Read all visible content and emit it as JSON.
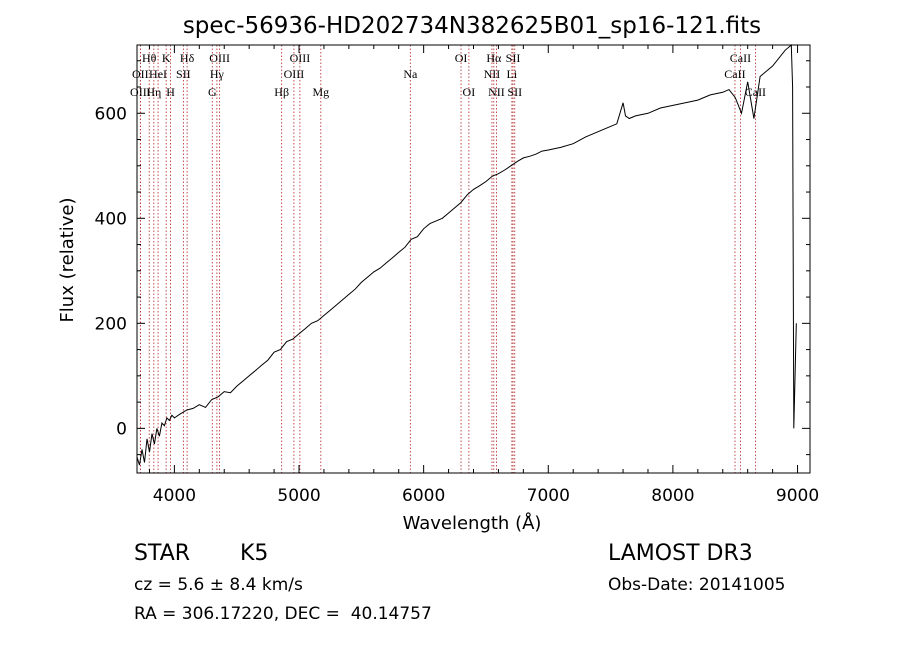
{
  "chart_data": {
    "type": "line",
    "title": "spec-56936-HD202734N382625B01_sp16-121.fits",
    "xlabel": "Wavelength (Å)",
    "ylabel": "Flux (relative)",
    "xlim": [
      3700,
      9100
    ],
    "ylim": [
      -85,
      730
    ],
    "xticks": [
      4000,
      5000,
      6000,
      7000,
      8000,
      9000
    ],
    "yticks": [
      0,
      200,
      400,
      600
    ],
    "series": [
      {
        "name": "spectrum",
        "points": [
          [
            3700,
            -55
          ],
          [
            3720,
            -70
          ],
          [
            3740,
            -40
          ],
          [
            3760,
            -65
          ],
          [
            3780,
            -20
          ],
          [
            3800,
            -45
          ],
          [
            3820,
            -10
          ],
          [
            3840,
            -30
          ],
          [
            3860,
            0
          ],
          [
            3880,
            -15
          ],
          [
            3900,
            10
          ],
          [
            3920,
            5
          ],
          [
            3940,
            20
          ],
          [
            3960,
            15
          ],
          [
            3980,
            25
          ],
          [
            4000,
            20
          ],
          [
            4050,
            28
          ],
          [
            4100,
            35
          ],
          [
            4150,
            38
          ],
          [
            4200,
            45
          ],
          [
            4250,
            40
          ],
          [
            4300,
            55
          ],
          [
            4350,
            60
          ],
          [
            4400,
            70
          ],
          [
            4450,
            68
          ],
          [
            4500,
            80
          ],
          [
            4550,
            90
          ],
          [
            4600,
            100
          ],
          [
            4650,
            110
          ],
          [
            4700,
            120
          ],
          [
            4750,
            130
          ],
          [
            4800,
            145
          ],
          [
            4850,
            150
          ],
          [
            4900,
            165
          ],
          [
            4950,
            170
          ],
          [
            5000,
            180
          ],
          [
            5050,
            190
          ],
          [
            5100,
            200
          ],
          [
            5150,
            205
          ],
          [
            5200,
            215
          ],
          [
            5250,
            225
          ],
          [
            5300,
            235
          ],
          [
            5350,
            245
          ],
          [
            5400,
            255
          ],
          [
            5450,
            265
          ],
          [
            5500,
            278
          ],
          [
            5550,
            288
          ],
          [
            5600,
            298
          ],
          [
            5650,
            305
          ],
          [
            5700,
            315
          ],
          [
            5750,
            325
          ],
          [
            5800,
            335
          ],
          [
            5850,
            345
          ],
          [
            5900,
            360
          ],
          [
            5950,
            365
          ],
          [
            6000,
            380
          ],
          [
            6050,
            390
          ],
          [
            6100,
            395
          ],
          [
            6150,
            400
          ],
          [
            6200,
            410
          ],
          [
            6250,
            420
          ],
          [
            6300,
            430
          ],
          [
            6350,
            445
          ],
          [
            6400,
            455
          ],
          [
            6450,
            462
          ],
          [
            6500,
            470
          ],
          [
            6550,
            480
          ],
          [
            6600,
            485
          ],
          [
            6650,
            492
          ],
          [
            6700,
            500
          ],
          [
            6750,
            508
          ],
          [
            6800,
            515
          ],
          [
            6850,
            518
          ],
          [
            6900,
            522
          ],
          [
            6950,
            528
          ],
          [
            7000,
            530
          ],
          [
            7100,
            535
          ],
          [
            7200,
            542
          ],
          [
            7300,
            555
          ],
          [
            7400,
            565
          ],
          [
            7500,
            575
          ],
          [
            7550,
            580
          ],
          [
            7600,
            620
          ],
          [
            7620,
            595
          ],
          [
            7650,
            590
          ],
          [
            7700,
            595
          ],
          [
            7800,
            600
          ],
          [
            7900,
            610
          ],
          [
            8000,
            615
          ],
          [
            8100,
            620
          ],
          [
            8200,
            625
          ],
          [
            8300,
            635
          ],
          [
            8400,
            640
          ],
          [
            8450,
            645
          ],
          [
            8500,
            630
          ],
          [
            8550,
            600
          ],
          [
            8600,
            660
          ],
          [
            8650,
            590
          ],
          [
            8700,
            670
          ],
          [
            8800,
            690
          ],
          [
            8900,
            720
          ],
          [
            8950,
            730
          ],
          [
            8960,
            650
          ],
          [
            8970,
            0
          ],
          [
            8990,
            200
          ]
        ]
      }
    ],
    "spectral_lines": [
      {
        "label": "Hθ",
        "wavelength": 3798,
        "row": 1
      },
      {
        "label": "OII",
        "wavelength": 3727,
        "row": 2
      },
      {
        "label": "OIII",
        "wavelength": 3727,
        "row": 3
      },
      {
        "label": "HeI",
        "wavelength": 3869,
        "row": 2
      },
      {
        "label": "Hη",
        "wavelength": 3835,
        "row": 3
      },
      {
        "label": "K",
        "wavelength": 3934,
        "row": 1
      },
      {
        "label": "H",
        "wavelength": 3969,
        "row": 3
      },
      {
        "label": "SII",
        "wavelength": 4072,
        "row": 2
      },
      {
        "label": "Hδ",
        "wavelength": 4102,
        "row": 1
      },
      {
        "label": "OIII",
        "wavelength": 4363,
        "row": 1
      },
      {
        "label": "Hγ",
        "wavelength": 4341,
        "row": 2
      },
      {
        "label": "G",
        "wavelength": 4304,
        "row": 3
      },
      {
        "label": "Hβ",
        "wavelength": 4861,
        "row": 3
      },
      {
        "label": "OIII",
        "wavelength": 5007,
        "row": 1
      },
      {
        "label": "OIII",
        "wavelength": 4959,
        "row": 2
      },
      {
        "label": "Mg",
        "wavelength": 5175,
        "row": 3
      },
      {
        "label": "Na",
        "wavelength": 5893,
        "row": 2
      },
      {
        "label": "OI",
        "wavelength": 6300,
        "row": 1
      },
      {
        "label": "OI",
        "wavelength": 6363,
        "row": 3
      },
      {
        "label": "Hα",
        "wavelength": 6563,
        "row": 1
      },
      {
        "label": "NII",
        "wavelength": 6548,
        "row": 2
      },
      {
        "label": "NII",
        "wavelength": 6584,
        "row": 3
      },
      {
        "label": "SII",
        "wavelength": 6717,
        "row": 1
      },
      {
        "label": "Li",
        "wavelength": 6708,
        "row": 2
      },
      {
        "label": "SII",
        "wavelength": 6731,
        "row": 3
      },
      {
        "label": "CaII",
        "wavelength": 8542,
        "row": 1
      },
      {
        "label": "CaII",
        "wavelength": 8498,
        "row": 2
      },
      {
        "label": "CaII",
        "wavelength": 8662,
        "row": 3
      }
    ]
  },
  "info": {
    "object_class": "STAR",
    "subclass": "K5",
    "survey": "LAMOST DR3",
    "cz": "cz = 5.6 ± 8.4 km/s",
    "obs_date": "Obs-Date: 20141005",
    "radec": "RA = 306.17220, DEC =  40.14757"
  }
}
